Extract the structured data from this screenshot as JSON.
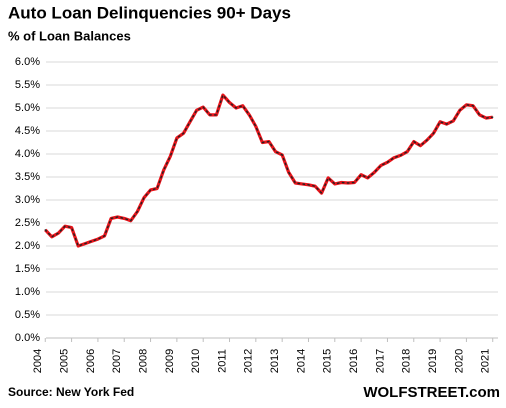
{
  "chart_data": {
    "type": "line",
    "title": "Auto Loan Delinquencies 90+ Days",
    "subtitle": "% of Loan Balances",
    "source": "Source: New York Fed",
    "brand": "WOLFSTREET.com",
    "x": [
      2004,
      2004.25,
      2004.5,
      2004.75,
      2005,
      2005.25,
      2005.5,
      2005.75,
      2006,
      2006.25,
      2006.5,
      2006.75,
      2007,
      2007.25,
      2007.5,
      2007.75,
      2008,
      2008.25,
      2008.5,
      2008.75,
      2009,
      2009.25,
      2009.5,
      2009.75,
      2010,
      2010.25,
      2010.5,
      2010.75,
      2011,
      2011.25,
      2011.5,
      2011.75,
      2012,
      2012.25,
      2012.5,
      2012.75,
      2013,
      2013.25,
      2013.5,
      2013.75,
      2014,
      2014.25,
      2014.5,
      2014.75,
      2015,
      2015.25,
      2015.5,
      2015.75,
      2016,
      2016.25,
      2016.5,
      2016.75,
      2017,
      2017.25,
      2017.5,
      2017.75,
      2018,
      2018.25,
      2018.5,
      2018.75,
      2019,
      2019.25,
      2019.5,
      2019.75,
      2020,
      2020.25,
      2020.5,
      2020.75,
      2021
    ],
    "series": [
      {
        "name": "Auto Loan Delinquencies 90+ Days",
        "color": "#e8141b",
        "values": [
          2.35,
          2.2,
          2.28,
          2.43,
          2.4,
          2.0,
          2.05,
          2.1,
          2.15,
          2.22,
          2.6,
          2.63,
          2.6,
          2.55,
          2.75,
          3.05,
          3.22,
          3.25,
          3.65,
          3.95,
          4.35,
          4.45,
          4.7,
          4.95,
          5.02,
          4.85,
          4.85,
          5.28,
          5.12,
          5.0,
          5.05,
          4.85,
          4.6,
          4.25,
          4.27,
          4.05,
          3.98,
          3.6,
          3.37,
          3.35,
          3.33,
          3.3,
          3.15,
          3.48,
          3.35,
          3.38,
          3.37,
          3.38,
          3.55,
          3.48,
          3.6,
          3.75,
          3.82,
          3.92,
          3.97,
          4.05,
          4.27,
          4.18,
          4.3,
          4.45,
          4.7,
          4.65,
          4.72,
          4.95,
          5.07,
          5.05,
          4.85,
          4.78,
          4.8
        ]
      }
    ],
    "xlim": [
      2003.8,
      2021.2
    ],
    "xticks": [
      2004,
      2005,
      2006,
      2007,
      2008,
      2009,
      2010,
      2011,
      2012,
      2013,
      2014,
      2015,
      2016,
      2017,
      2018,
      2019,
      2020,
      2021
    ],
    "ylim": [
      0,
      6
    ],
    "yticks": [
      {
        "value": 0,
        "label": "0.0%"
      },
      {
        "value": 0.5,
        "label": "0.5%"
      },
      {
        "value": 1,
        "label": "1.0%"
      },
      {
        "value": 1.5,
        "label": "1.5%"
      },
      {
        "value": 2,
        "label": "2.0%"
      },
      {
        "value": 2.5,
        "label": "2.5%"
      },
      {
        "value": 3,
        "label": "3.0%"
      },
      {
        "value": 3.5,
        "label": "3.5%"
      },
      {
        "value": 4,
        "label": "4.0%"
      },
      {
        "value": 4.5,
        "label": "4.5%"
      },
      {
        "value": 5,
        "label": "5.0%"
      },
      {
        "value": 5.5,
        "label": "5.5%"
      },
      {
        "value": 6,
        "label": "6.0%"
      }
    ],
    "grid": true
  }
}
